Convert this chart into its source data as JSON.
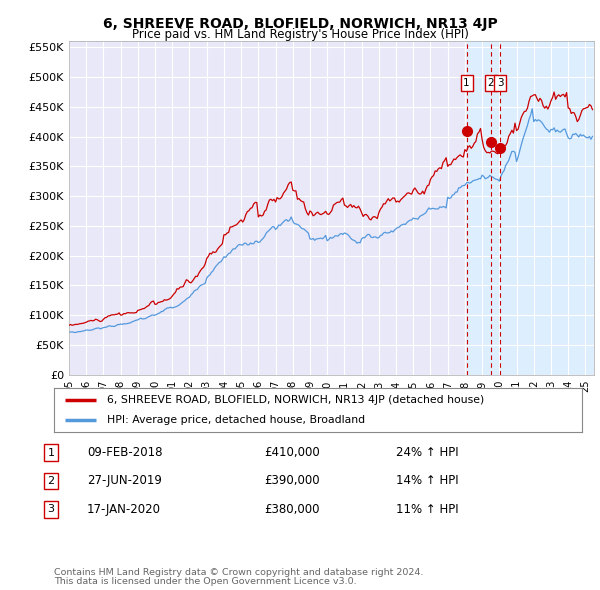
{
  "title": "6, SHREEVE ROAD, BLOFIELD, NORWICH, NR13 4JP",
  "subtitle": "Price paid vs. HM Land Registry's House Price Index (HPI)",
  "ylim": [
    0,
    560000
  ],
  "yticks": [
    0,
    50000,
    100000,
    150000,
    200000,
    250000,
    300000,
    350000,
    400000,
    450000,
    500000,
    550000
  ],
  "ytick_labels": [
    "£0",
    "£50K",
    "£100K",
    "£150K",
    "£200K",
    "£250K",
    "£300K",
    "£350K",
    "£400K",
    "£450K",
    "£500K",
    "£550K"
  ],
  "background_color": "#ffffff",
  "plot_bg_color": "#e8e8f8",
  "plot_bg_color2": "#ddeeff",
  "grid_color": "#ffffff",
  "red_line_color": "#cc0000",
  "blue_line_color": "#5599dd",
  "shade_from": 2018.1,
  "transactions": [
    {
      "num": 1,
      "date": "09-FEB-2018",
      "price": 410000,
      "pct": "24%",
      "year_x": 2018.1
    },
    {
      "num": 2,
      "date": "27-JUN-2019",
      "price": 390000,
      "pct": "14%",
      "year_x": 2019.5
    },
    {
      "num": 3,
      "date": "17-JAN-2020",
      "price": 380000,
      "pct": "11%",
      "year_x": 2020.05
    }
  ],
  "legend_line1": "6, SHREEVE ROAD, BLOFIELD, NORWICH, NR13 4JP (detached house)",
  "legend_line2": "HPI: Average price, detached house, Broadland",
  "footer1": "Contains HM Land Registry data © Crown copyright and database right 2024.",
  "footer2": "This data is licensed under the Open Government Licence v3.0.",
  "xlim_start": 1995,
  "xlim_end": 2025.5
}
